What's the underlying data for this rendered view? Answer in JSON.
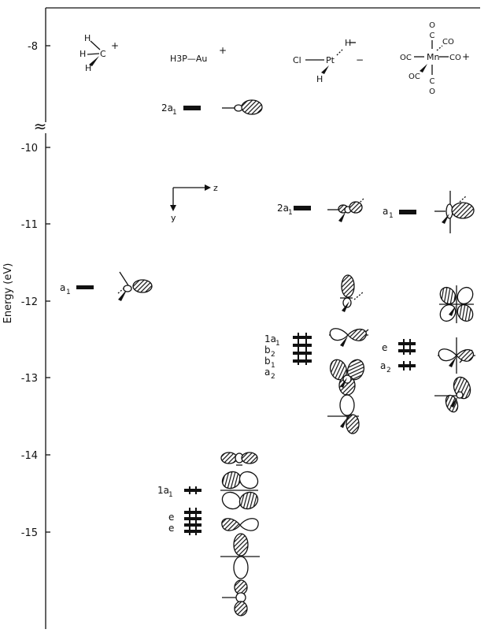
{
  "axis": {
    "label": "Energy (eV)",
    "ticks": [
      "-8",
      "-10",
      "-11",
      "-12",
      "-13",
      "-14",
      "-15"
    ],
    "break_symbol": "≈"
  },
  "fragments": {
    "ch3": {
      "atoms": [
        "H",
        "H",
        "H",
        "C"
      ],
      "charge": "+"
    },
    "au": {
      "formula": "H3P—Au",
      "charge": "+"
    },
    "pt": {
      "left": "Cl",
      "metal": "Pt",
      "right": "H",
      "below": "H",
      "charge": "−"
    },
    "mn": {
      "co": [
        "CO",
        "CO",
        "OC",
        "OC",
        "O",
        "C",
        "C",
        "O"
      ],
      "metal": "Mn",
      "charge": "+"
    }
  },
  "coordinate_axes": {
    "z": "z",
    "y": "y"
  },
  "levels": {
    "ch3_a1": "a",
    "ch3_a1_sub": "1",
    "au_2a1": "2a",
    "au_2a1_sub": "1",
    "au_1a1": "1a",
    "au_1a1_sub": "1",
    "au_e1": "e",
    "au_e2": "e",
    "pt_2a1": "2a",
    "pt_2a1_sub": "1",
    "pt_1a1": "1a",
    "pt_1a1_sub": "1",
    "pt_b2": "b",
    "pt_b2_sub": "2",
    "pt_b1": "b",
    "pt_b1_sub": "1",
    "pt_a2": "a",
    "pt_a2_sub": "2",
    "mn_a1": "a",
    "mn_a1_sub": "1",
    "mn_e": "e",
    "mn_a2": "a",
    "mn_a2_sub": "2"
  }
}
